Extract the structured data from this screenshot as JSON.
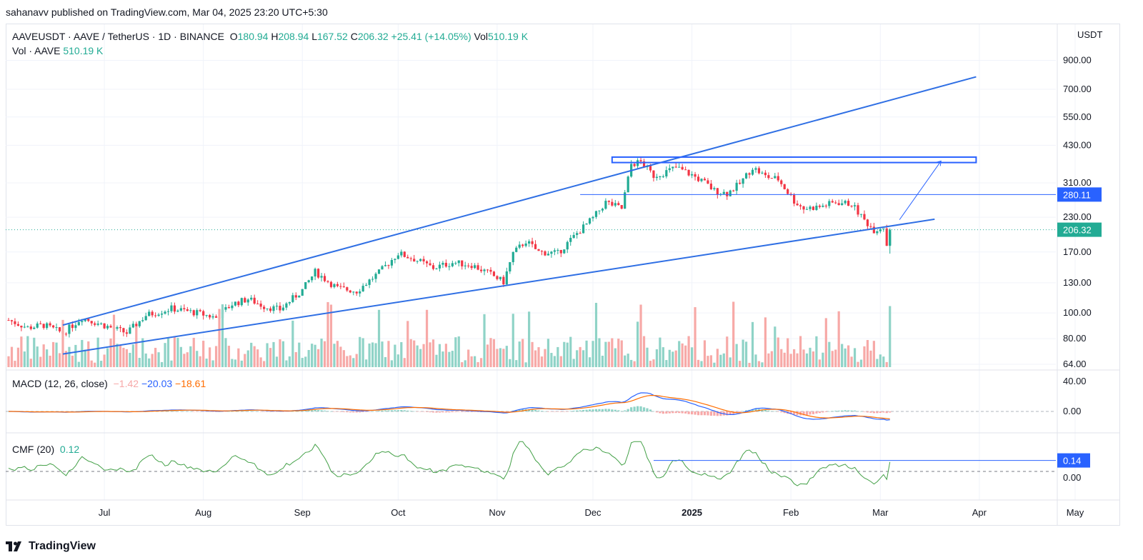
{
  "header": {
    "publisher": "sahanavv published on TradingView.com, Mar 04, 2025 23:20 UTC+5:30"
  },
  "legend": {
    "symbol": "AAVEUSDT · AAVE / TetherUS · 1D · BINANCE",
    "open_label": "O",
    "open": "180.94",
    "high_label": "H",
    "high": "208.94",
    "low_label": "L",
    "low": "167.52",
    "close_label": "C",
    "close": "206.32",
    "change": "+25.41 (+14.05%)",
    "vol_label": "Vol",
    "vol": "510.19 K",
    "vol_row_label": "Vol · AAVE",
    "vol_row_value": "510.19 K"
  },
  "macd": {
    "label": "MACD (12, 26, close)",
    "hist": "−1.42",
    "macd": "−20.03",
    "signal": "−18.61"
  },
  "cmf": {
    "label": "CMF (20)",
    "value": "0.12"
  },
  "footer": {
    "brand": "TradingView"
  },
  "colors": {
    "up": "#22ab94",
    "down": "#f23645",
    "line_blue": "#2962ff",
    "trend_blue": "#2f6fe4",
    "signal": "#ff6d00",
    "cmf": "#43a047"
  },
  "chart_data": {
    "type": "candlestick",
    "symbol": "AAVEUSDT",
    "interval": "1D",
    "exchange": "BINANCE",
    "price_axis": {
      "unit": "USDT",
      "scale": "log",
      "ticks": [
        "900.00",
        "700.00",
        "550.00",
        "430.00",
        "310.00",
        "230.00",
        "170.00",
        "130.00",
        "100.00",
        "80.00",
        "64.00"
      ],
      "last_price": "206.32",
      "level_label": "280.11"
    },
    "time_axis": {
      "ticks": [
        "Jul",
        "Aug",
        "Sep",
        "Oct",
        "Nov",
        "Dec",
        "2025",
        "Feb",
        "Mar",
        "Apr",
        "May"
      ]
    },
    "ohlc_points": [
      [
        "2024-06-01",
        94
      ],
      [
        "2024-06-07",
        88
      ],
      [
        "2024-06-12",
        90
      ],
      [
        "2024-06-18",
        84
      ],
      [
        "2024-06-24",
        96
      ],
      [
        "2024-07-03",
        88
      ],
      [
        "2024-07-08",
        84
      ],
      [
        "2024-07-14",
        98
      ],
      [
        "2024-07-22",
        104
      ],
      [
        "2024-07-30",
        100
      ],
      [
        "2024-08-05",
        96
      ],
      [
        "2024-08-10",
        108
      ],
      [
        "2024-08-15",
        113
      ],
      [
        "2024-08-20",
        106
      ],
      [
        "2024-08-25",
        103
      ],
      [
        "2024-09-01",
        122
      ],
      [
        "2024-09-05",
        143
      ],
      [
        "2024-09-12",
        124
      ],
      [
        "2024-09-18",
        121
      ],
      [
        "2024-09-25",
        142
      ],
      [
        "2024-10-01",
        168
      ],
      [
        "2024-10-06",
        160
      ],
      [
        "2024-10-12",
        148
      ],
      [
        "2024-10-18",
        155
      ],
      [
        "2024-10-24",
        152
      ],
      [
        "2024-10-30",
        140
      ],
      [
        "2024-11-03",
        131
      ],
      [
        "2024-11-06",
        168
      ],
      [
        "2024-11-10",
        187
      ],
      [
        "2024-11-14",
        170
      ],
      [
        "2024-11-20",
        168
      ],
      [
        "2024-11-26",
        200
      ],
      [
        "2024-12-01",
        228
      ],
      [
        "2024-12-05",
        262
      ],
      [
        "2024-12-10",
        248
      ],
      [
        "2024-12-13",
        365
      ],
      [
        "2024-12-16",
        372
      ],
      [
        "2024-12-20",
        330
      ],
      [
        "2024-12-23",
        338
      ],
      [
        "2024-12-27",
        355
      ],
      [
        "2025-01-01",
        332
      ],
      [
        "2025-01-05",
        310
      ],
      [
        "2025-01-08",
        290
      ],
      [
        "2025-01-12",
        283
      ],
      [
        "2025-01-16",
        308
      ],
      [
        "2025-01-20",
        355
      ],
      [
        "2025-01-24",
        328
      ],
      [
        "2025-01-28",
        320
      ],
      [
        "2025-02-02",
        265
      ],
      [
        "2025-02-05",
        248
      ],
      [
        "2025-02-10",
        252
      ],
      [
        "2025-02-15",
        262
      ],
      [
        "2025-02-20",
        258
      ],
      [
        "2025-02-24",
        224
      ],
      [
        "2025-02-27",
        206
      ],
      [
        "2025-03-02",
        212
      ],
      [
        "2025-03-03",
        181
      ],
      [
        "2025-03-04",
        206.32
      ]
    ],
    "annotations": [
      {
        "type": "trendline",
        "name": "upper"
      },
      {
        "type": "trendline",
        "name": "lower"
      },
      {
        "type": "zone",
        "from": 370,
        "to": 388
      },
      {
        "type": "hline",
        "value": 280.11
      },
      {
        "type": "arrow",
        "from": 225,
        "to": 375
      }
    ],
    "volume_last": "510.19 K",
    "macd": {
      "params": "12, 26, close",
      "histogram": -1.42,
      "macd": -20.03,
      "signal": -18.61,
      "axis_ticks": [
        "40.00",
        "0.00"
      ]
    },
    "cmf": {
      "period": 20,
      "value": 0.12,
      "level_label": "0.14",
      "axis_ticks": [
        "0.00"
      ]
    }
  }
}
